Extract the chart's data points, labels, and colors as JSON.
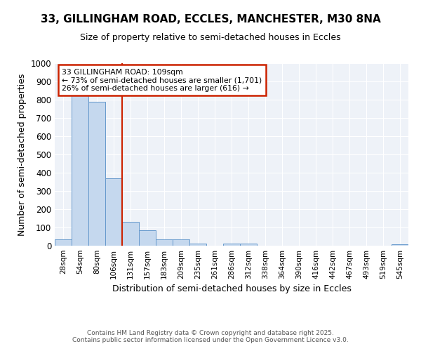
{
  "title_line1": "33, GILLINGHAM ROAD, ECCLES, MANCHESTER, M30 8NA",
  "title_line2": "Size of property relative to semi-detached houses in Eccles",
  "xlabel": "Distribution of semi-detached houses by size in Eccles",
  "ylabel": "Number of semi-detached properties",
  "categories": [
    "28sqm",
    "54sqm",
    "80sqm",
    "106sqm",
    "131sqm",
    "157sqm",
    "183sqm",
    "209sqm",
    "235sqm",
    "261sqm",
    "286sqm",
    "312sqm",
    "338sqm",
    "364sqm",
    "390sqm",
    "416sqm",
    "442sqm",
    "467sqm",
    "493sqm",
    "519sqm",
    "545sqm"
  ],
  "bar_heights": [
    35,
    830,
    790,
    370,
    130,
    85,
    35,
    35,
    12,
    0,
    12,
    12,
    0,
    0,
    0,
    0,
    0,
    0,
    0,
    0,
    8
  ],
  "bar_color": "#c5d8ee",
  "bar_edge_color": "#6699cc",
  "vline_position": 3.5,
  "vline_color": "#cc2200",
  "annotation_title": "33 GILLINGHAM ROAD: 109sqm",
  "annotation_line2": "← 73% of semi-detached houses are smaller (1,701)",
  "annotation_line3": "26% of semi-detached houses are larger (616) →",
  "annotation_box_color": "#cc2200",
  "ylim": [
    0,
    1000
  ],
  "yticks": [
    0,
    100,
    200,
    300,
    400,
    500,
    600,
    700,
    800,
    900,
    1000
  ],
  "bg_color": "#eef2f8",
  "footer_line1": "Contains HM Land Registry data © Crown copyright and database right 2025.",
  "footer_line2": "Contains public sector information licensed under the Open Government Licence v3.0.",
  "fig_width": 6.0,
  "fig_height": 5.0,
  "dpi": 100
}
